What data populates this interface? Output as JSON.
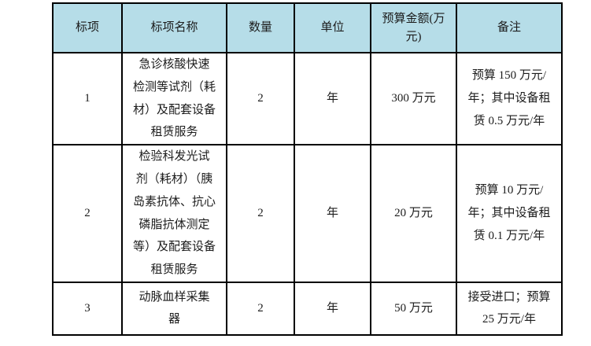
{
  "table": {
    "header_bg": "#b6dde8",
    "border_color": "#000000",
    "text_color": "#1c1c1c",
    "columns": [
      "标项",
      "标项名称",
      "数量",
      "单位",
      "预算金额(万\n元)",
      "备注"
    ],
    "rows": [
      {
        "item": "1",
        "name": "急诊核酸快速\n检测等试剂（耗\n材）及配套设备\n租赁服务",
        "qty": "2",
        "unit": "年",
        "budget": "300 万元",
        "note": "预算 150 万元/\n年；其中设备租\n赁 0.5 万元/年"
      },
      {
        "item": "2",
        "name": "检验科发光试\n剂（耗材）（胰\n岛素抗体、抗心\n磷脂抗体测定\n等）及配套设备\n租赁服务",
        "qty": "2",
        "unit": "年",
        "budget": "20 万元",
        "note": "预算 10 万元/\n年；其中设备租\n赁 0.1 万元/年"
      },
      {
        "item": "3",
        "name": "动脉血样采集\n器",
        "qty": "2",
        "unit": "年",
        "budget": "50 万元",
        "note": "接受进口；预算\n25 万元/年"
      }
    ]
  }
}
